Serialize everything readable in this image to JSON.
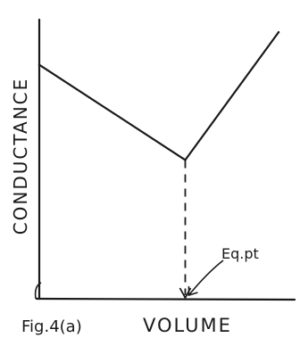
{
  "chart_data": {
    "type": "line",
    "title": "",
    "ylabel": "CONDUCTANCE",
    "xlabel": "VOLUME",
    "figure_label": "Fig.4(a)",
    "annotation": "Eq.pt",
    "grid": false,
    "legend": "none",
    "xlim": [
      0,
      100
    ],
    "ylim": [
      0,
      100
    ],
    "series": [
      {
        "points": [
          [
            0,
            86
          ],
          [
            61,
            51
          ],
          [
            100,
            98
          ]
        ]
      }
    ],
    "equivalence_point": {
      "x": 61,
      "y": 51
    },
    "colors": {
      "ink": "#1a1a1a"
    }
  }
}
